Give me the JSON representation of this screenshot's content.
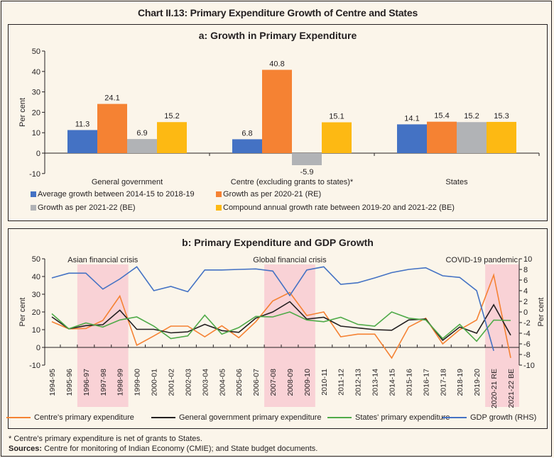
{
  "title": "Chart II.13: Primary Expenditure Growth of Centre and States",
  "footnote": "* Centre's primary expenditure is net of grants to States.",
  "sources_label": "Sources:",
  "sources_text": "Centre for monitoring of Indian Economy (CMIE); and State budget documents.",
  "chart_data": [
    {
      "type": "bar",
      "title": "a: Growth in Primary Expenditure",
      "xlabel": "",
      "ylabel": "Per cent",
      "ylim": [
        -10,
        50
      ],
      "yticks": [
        50,
        40,
        30,
        20,
        10,
        0,
        -10
      ],
      "grid": false,
      "legend_position": "bottom",
      "categories": [
        "General government",
        "Centre (excluding grants to states)*",
        "States"
      ],
      "series": [
        {
          "name": "Average growth between 2014-15 to 2018-19",
          "color": "#4472c4",
          "values": [
            11.3,
            6.8,
            14.1
          ],
          "labels": [
            "11.3",
            "6.8",
            "14.1"
          ]
        },
        {
          "name": "Growth as per 2020-21 (RE)",
          "color": "#f58233",
          "values": [
            24.1,
            40.8,
            15.4
          ],
          "labels": [
            "24.1",
            "40.8",
            "15.4"
          ]
        },
        {
          "name": "Growth as per 2021-22 (BE)",
          "color": "#b1b3b6",
          "values": [
            6.9,
            -5.9,
            15.2
          ],
          "labels": [
            "6.9",
            "-5.9",
            "15.2"
          ]
        },
        {
          "name": "Compound annual growth rate between 2019-20 and 2021-22 (BE)",
          "color": "#fdb913",
          "values": [
            15.2,
            15.1,
            15.3
          ],
          "labels": [
            "15.2",
            "15.1",
            "15.3"
          ]
        }
      ]
    },
    {
      "type": "line",
      "title": "b: Primary Expenditure and GDP Growth",
      "xlabel": "",
      "ylabel": "Per cent",
      "y2label": "Per cent",
      "ylim": [
        -10,
        50
      ],
      "y2lim": [
        -10,
        10
      ],
      "yticks": [
        50,
        40,
        30,
        20,
        10,
        0,
        -10
      ],
      "y2ticks": [
        10,
        8,
        6,
        4,
        2,
        0,
        -2,
        -4,
        -6,
        -8,
        -10
      ],
      "grid": false,
      "legend_position": "bottom",
      "x": [
        "1994-95",
        "1995-96",
        "1996-97",
        "1997-98",
        "1998-99",
        "1999-00",
        "2000-01",
        "2001-02",
        "2002-03",
        "2003-04",
        "2004-05",
        "2005-06",
        "2006-07",
        "2007-08",
        "2008-09",
        "2009-10",
        "2010-11",
        "2011-12",
        "2012-13",
        "2013-14",
        "2014-15",
        "2015-16",
        "2016-17",
        "2017-18",
        "2018-19",
        "2019-20",
        "2020-21 RE",
        "2021-22 BE"
      ],
      "shaded_periods": [
        {
          "label": "Asian financial crisis",
          "from": "1996-97",
          "to": "1998-99"
        },
        {
          "label": "Global financial crisis",
          "from": "2007-08",
          "to": "2009-10"
        },
        {
          "label": "COVID-19 pandemic",
          "from": "2020-21 RE",
          "to": "2021-22 BE"
        }
      ],
      "series": [
        {
          "name": "Centre's primary expenditure",
          "color": "#f58233",
          "axis": "left",
          "values": [
            14.5,
            10.5,
            10.7,
            15.2,
            29.0,
            1.2,
            6.5,
            12.0,
            12.0,
            6.0,
            12.2,
            5.5,
            14.5,
            26.2,
            31.0,
            18.0,
            20.0,
            6.0,
            7.5,
            7.5,
            -6.0,
            11.5,
            16.5,
            2.0,
            10.0,
            15.5,
            40.8,
            -5.9
          ]
        },
        {
          "name": "General government primary expenditure",
          "color": "#231f20",
          "axis": "left",
          "values": [
            17.2,
            10.5,
            12.3,
            12.8,
            21.0,
            10.2,
            10.2,
            8.2,
            8.8,
            13.0,
            9.5,
            8.5,
            16.5,
            20.0,
            25.8,
            16.0,
            17.0,
            12.0,
            11.0,
            10.0,
            9.7,
            15.5,
            16.0,
            4.0,
            11.5,
            8.0,
            24.1,
            6.9
          ]
        },
        {
          "name": "States' primary expenditure",
          "color": "#4faa48",
          "axis": "left",
          "values": [
            19.0,
            10.5,
            13.8,
            11.5,
            15.5,
            17.2,
            12.0,
            5.0,
            6.5,
            18.2,
            7.5,
            11.2,
            17.5,
            17.2,
            20.0,
            15.5,
            14.5,
            17.0,
            13.0,
            12.0,
            20.0,
            16.5,
            15.5,
            5.0,
            13.0,
            3.5,
            15.4,
            15.2
          ]
        },
        {
          "name": "GDP growth (RHS)",
          "color": "#4472c4",
          "axis": "right",
          "values": [
            6.4,
            7.3,
            7.3,
            4.3,
            6.2,
            8.5,
            4.0,
            4.8,
            3.8,
            7.9,
            7.9,
            8.0,
            8.1,
            7.7,
            3.1,
            7.9,
            8.5,
            5.2,
            5.5,
            6.4,
            7.4,
            8.0,
            8.3,
            6.8,
            6.5,
            4.0,
            -7.3,
            null
          ]
        }
      ]
    }
  ]
}
